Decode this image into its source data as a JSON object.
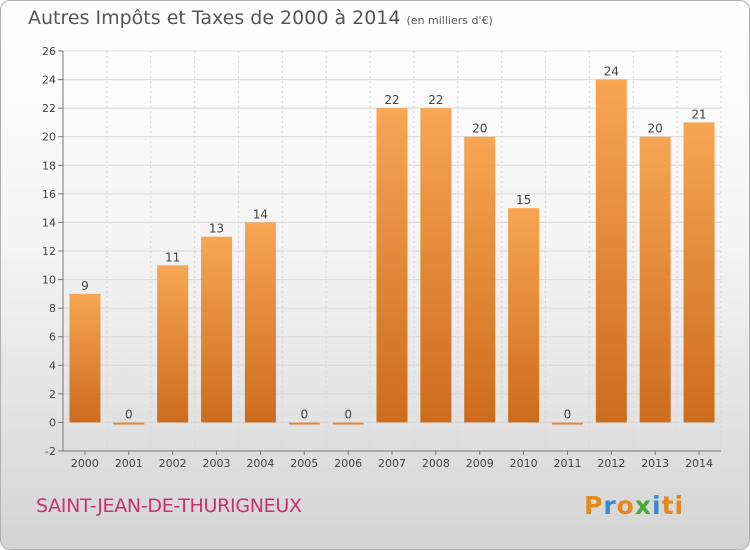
{
  "header": {
    "title": "Autres Impôts et Taxes de 2000 à 2014",
    "unit": "(en milliers d'€)"
  },
  "footer": {
    "commune": "SAINT-JEAN-DE-THURIGNEUX",
    "logo_letters": [
      "P",
      "r",
      "o",
      "x",
      "i",
      "ti"
    ]
  },
  "colors": {
    "bar_top": "#f7a654",
    "bar_bottom": "#cc6c1c",
    "grid": "#d8d8d8",
    "commune_text": "#c8326e"
  },
  "chart_data": {
    "type": "bar",
    "title": "Autres Impôts et Taxes de 2000 à 2014",
    "subtitle": "(en milliers d'€)",
    "categories": [
      "2000",
      "2001",
      "2002",
      "2003",
      "2004",
      "2005",
      "2006",
      "2007",
      "2008",
      "2009",
      "2010",
      "2011",
      "2012",
      "2013",
      "2014"
    ],
    "values": [
      9,
      0,
      11,
      13,
      14,
      0,
      0,
      22,
      22,
      20,
      15,
      0,
      24,
      20,
      21
    ],
    "ylim": [
      -2,
      26
    ],
    "yticks": [
      -2,
      0,
      2,
      4,
      6,
      8,
      10,
      12,
      14,
      16,
      18,
      20,
      22,
      24,
      26
    ],
    "grid": true,
    "legend": "none"
  }
}
